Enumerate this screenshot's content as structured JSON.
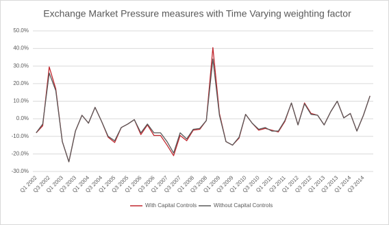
{
  "chart_data": {
    "type": "line",
    "title": "Exchange Market Pressure measures with Time Varying weighting factor",
    "categories": [
      "Q1 2002",
      null,
      "Q3 2002",
      null,
      "Q1 2003",
      null,
      "Q3 2003",
      null,
      "Q1 2004",
      null,
      "Q3 2004",
      null,
      "Q1 2005",
      null,
      "Q3 2005",
      null,
      "Q1 2006",
      null,
      "Q3 2006",
      null,
      "Q1 2007",
      null,
      "Q3 2007",
      null,
      "Q1 2008",
      null,
      "Q3 2008",
      null,
      "Q1 2009",
      null,
      "Q3 2009",
      null,
      "Q1 2010",
      null,
      "Q3 2010",
      null,
      "Q1 2011",
      null,
      "Q3 2011",
      null,
      "Q1 2012",
      null,
      "Q3 2012",
      null,
      "Q1 2013",
      null,
      "Q3 2013",
      null,
      "Q1 2014",
      null,
      "Q3 2014",
      null
    ],
    "series": [
      {
        "name": "With Capital Controls",
        "color": "#c0262d",
        "values": [
          -8,
          -4,
          29.5,
          17,
          -13,
          -24.5,
          -7,
          2,
          -2.5,
          6.5,
          -1.5,
          -10.5,
          -13.5,
          -5,
          -3,
          -0.5,
          -9,
          -3.5,
          -9.5,
          -9.5,
          -15,
          -21,
          -9.5,
          -12.5,
          -6.5,
          -6,
          -1,
          40.5,
          3,
          -13,
          -15,
          -11,
          2.5,
          -2.5,
          -6.5,
          -5.5,
          -6.5,
          -7.5,
          -1.5,
          9,
          -3.5,
          9,
          3,
          2,
          -3.5,
          4,
          10,
          0.5,
          3,
          -7,
          2,
          13
        ]
      },
      {
        "name": "Without Capital Controls",
        "color": "#595959",
        "values": [
          -8,
          -3,
          26,
          16,
          -13,
          -24.5,
          -7,
          2,
          -2.5,
          6.5,
          -1.5,
          -10,
          -12.5,
          -5,
          -3,
          -0.5,
          -8,
          -3,
          -8,
          -8,
          -13,
          -19.5,
          -8,
          -11.5,
          -6,
          -5.5,
          -1,
          34,
          2,
          -13,
          -15,
          -10.5,
          2.5,
          -2.5,
          -6,
          -5,
          -7,
          -7,
          -1,
          9,
          -3.5,
          8.5,
          2.5,
          2,
          -3.5,
          4,
          10,
          0.5,
          3,
          -7,
          2,
          13
        ]
      }
    ],
    "ylim": [
      -30,
      50
    ],
    "yticks": [
      {
        "value": -30,
        "label": "-30.0%"
      },
      {
        "value": -20,
        "label": "-20.0%"
      },
      {
        "value": -10,
        "label": "-10.0%"
      },
      {
        "value": 0,
        "label": "0.0%"
      },
      {
        "value": 10,
        "label": "10.0%"
      },
      {
        "value": 20,
        "label": "20.0%"
      },
      {
        "value": 30,
        "label": "30.0%"
      },
      {
        "value": 40,
        "label": "40.0%"
      },
      {
        "value": 50,
        "label": "50.0%"
      }
    ],
    "grid": true,
    "legend": "bottom"
  }
}
